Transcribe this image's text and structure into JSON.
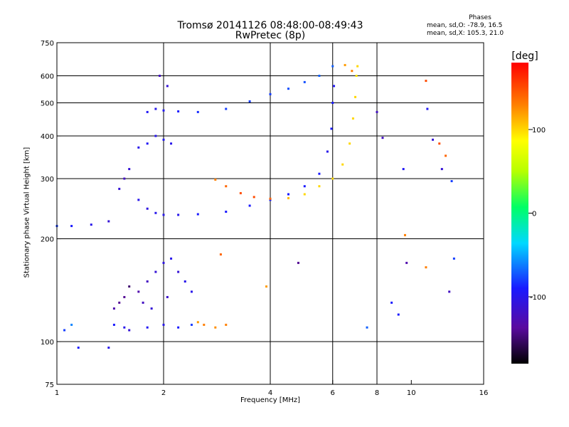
{
  "chart_data": {
    "type": "scatter",
    "title": "Tromsø 20141126 08:48:00-08:49:43",
    "subtitle": "RwPretec (8p)",
    "xlabel": "Frequency [MHz]",
    "ylabel": "Stationary phase Virtual Height [km]",
    "x_scale": "log2",
    "y_scale": "log",
    "xlim": [
      1,
      16
    ],
    "ylim": [
      75,
      750
    ],
    "x_ticks": [
      1,
      2,
      4,
      6,
      8,
      10,
      16
    ],
    "y_ticks": [
      75,
      100,
      200,
      300,
      400,
      500,
      600,
      750
    ],
    "x_grid": [
      2,
      4,
      6,
      8
    ],
    "y_grid": [
      100,
      200,
      300,
      400,
      500,
      600
    ],
    "phase_info": {
      "heading": "Phases",
      "line_o": "mean, sd,O: -78.9, 16.5",
      "line_x": "mean, sd,X: 105.3, 21.0"
    },
    "colorbar": {
      "label": "[deg]",
      "range": [
        -180,
        180
      ],
      "ticks": [
        100,
        0,
        -100
      ]
    },
    "series": [
      {
        "points": [
          [
            1.05,
            108,
            -80
          ],
          [
            1.1,
            112,
            -60
          ],
          [
            1.15,
            96,
            -90
          ],
          [
            1.4,
            96,
            -100
          ],
          [
            1.45,
            112,
            -90
          ],
          [
            1.55,
            110,
            -100
          ],
          [
            1.6,
            108,
            -110
          ],
          [
            1.8,
            110,
            -95
          ],
          [
            2.0,
            112,
            -100
          ],
          [
            2.2,
            110,
            -90
          ],
          [
            2.4,
            112,
            -80
          ],
          [
            2.5,
            114,
            120
          ],
          [
            2.6,
            112,
            130
          ],
          [
            2.8,
            110,
            125
          ],
          [
            3.0,
            112,
            130
          ],
          [
            1.5,
            130,
            -140
          ],
          [
            1.6,
            145,
            -150
          ],
          [
            1.7,
            140,
            -130
          ],
          [
            1.8,
            150,
            -120
          ],
          [
            1.9,
            160,
            -110
          ],
          [
            2.0,
            170,
            -105
          ],
          [
            2.1,
            175,
            -100
          ],
          [
            2.2,
            160,
            -110
          ],
          [
            2.3,
            150,
            -100
          ],
          [
            2.4,
            140,
            -100
          ],
          [
            1.45,
            125,
            -130
          ],
          [
            1.55,
            135,
            -140
          ],
          [
            1.75,
            130,
            -120
          ],
          [
            1.85,
            125,
            -110
          ],
          [
            2.05,
            135,
            -115
          ],
          [
            1.0,
            218,
            -80
          ],
          [
            1.1,
            218,
            -90
          ],
          [
            1.25,
            220,
            -100
          ],
          [
            1.4,
            225,
            -110
          ],
          [
            1.5,
            280,
            -110
          ],
          [
            1.55,
            300,
            -120
          ],
          [
            1.6,
            320,
            -110
          ],
          [
            1.7,
            260,
            -100
          ],
          [
            1.8,
            245,
            -105
          ],
          [
            1.9,
            238,
            -100
          ],
          [
            2.0,
            235,
            -100
          ],
          [
            2.2,
            235,
            -100
          ],
          [
            2.5,
            236,
            -90
          ],
          [
            3.0,
            240,
            -90
          ],
          [
            3.5,
            250,
            -90
          ],
          [
            4.0,
            260,
            -90
          ],
          [
            4.5,
            270,
            -90
          ],
          [
            5.0,
            285,
            -90
          ],
          [
            5.5,
            310,
            -90
          ],
          [
            5.8,
            360,
            -100
          ],
          [
            5.95,
            420,
            -90
          ],
          [
            6.0,
            500,
            -90
          ],
          [
            6.05,
            560,
            -95
          ],
          [
            2.8,
            298,
            130
          ],
          [
            3.0,
            285,
            140
          ],
          [
            3.3,
            272,
            150
          ],
          [
            3.6,
            265,
            150
          ],
          [
            4.0,
            262,
            140
          ],
          [
            4.5,
            263,
            110
          ],
          [
            5.0,
            270,
            100
          ],
          [
            5.5,
            285,
            100
          ],
          [
            6.0,
            300,
            100
          ],
          [
            6.4,
            330,
            100
          ],
          [
            6.7,
            380,
            100
          ],
          [
            6.85,
            450,
            100
          ],
          [
            6.95,
            520,
            100
          ],
          [
            7.0,
            600,
            95
          ],
          [
            7.05,
            640,
            100
          ],
          [
            1.8,
            470,
            -95
          ],
          [
            1.9,
            480,
            -100
          ],
          [
            2.0,
            475,
            -95
          ],
          [
            2.2,
            472,
            -90
          ],
          [
            2.5,
            470,
            -85
          ],
          [
            3.0,
            480,
            -80
          ],
          [
            3.5,
            505,
            -80
          ],
          [
            4.0,
            530,
            -80
          ],
          [
            4.5,
            550,
            -75
          ],
          [
            5.0,
            575,
            -75
          ],
          [
            5.5,
            600,
            -70
          ],
          [
            6.0,
            640,
            -70
          ],
          [
            6.5,
            645,
            120
          ],
          [
            6.8,
            620,
            130
          ],
          [
            1.7,
            370,
            -100
          ],
          [
            1.8,
            380,
            -95
          ],
          [
            1.9,
            400,
            -100
          ],
          [
            2.0,
            390,
            -95
          ],
          [
            2.1,
            380,
            -100
          ],
          [
            1.95,
            600,
            -120
          ],
          [
            2.05,
            560,
            -110
          ],
          [
            4.8,
            170,
            -140
          ],
          [
            7.5,
            110,
            -70
          ],
          [
            8.0,
            470,
            -120
          ],
          [
            8.3,
            395,
            -120
          ],
          [
            9.5,
            320,
            -95
          ],
          [
            9.6,
            205,
            130
          ],
          [
            9.7,
            170,
            -130
          ],
          [
            11.0,
            580,
            150
          ],
          [
            11.1,
            480,
            -95
          ],
          [
            11.5,
            390,
            -110
          ],
          [
            12.0,
            380,
            150
          ],
          [
            12.2,
            320,
            -110
          ],
          [
            12.5,
            350,
            140
          ],
          [
            13.0,
            295,
            -80
          ],
          [
            13.2,
            175,
            -80
          ],
          [
            12.8,
            140,
            -120
          ],
          [
            11.0,
            165,
            130
          ],
          [
            9.2,
            120,
            -90
          ],
          [
            8.8,
            130,
            -90
          ],
          [
            3.9,
            145,
            120
          ],
          [
            2.9,
            180,
            140
          ]
        ]
      }
    ]
  }
}
